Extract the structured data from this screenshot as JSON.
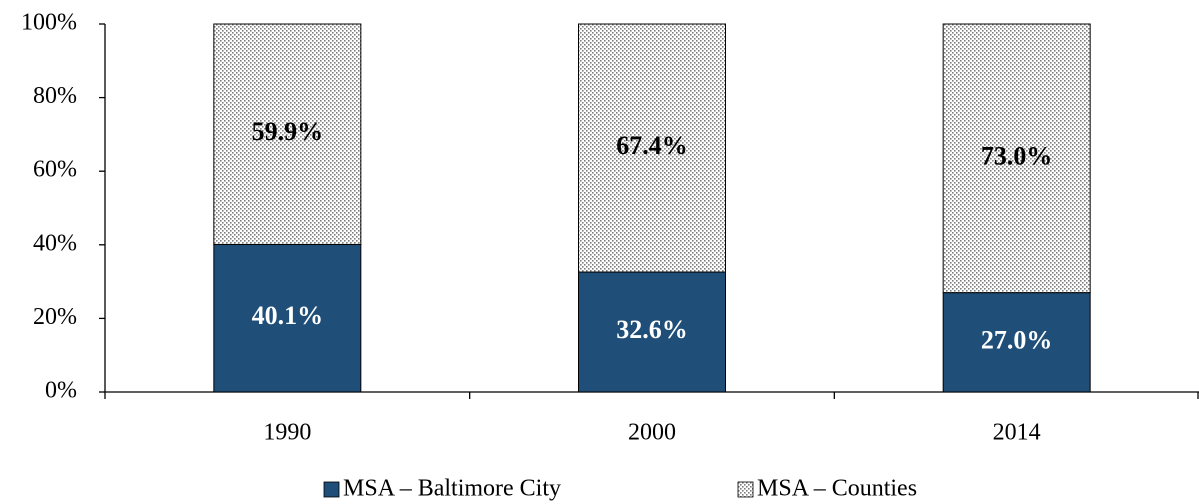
{
  "chart_data": {
    "type": "stacked_bar",
    "categories": [
      "1990",
      "2000",
      "2014"
    ],
    "series": [
      {
        "name": "MSA – Baltimore City",
        "color": "#1f4e79",
        "values": [
          40.1,
          32.6,
          27.0
        ],
        "value_labels": [
          "40.1%",
          "32.6%",
          "27.0%"
        ]
      },
      {
        "name": "MSA – Counties",
        "color": "#7f7f7f",
        "values": [
          59.9,
          67.4,
          73.0
        ],
        "value_labels": [
          "59.9%",
          "67.4%",
          "73.0%"
        ]
      }
    ],
    "ylim": [
      0,
      100
    ],
    "yticks": [
      {
        "value": 0,
        "label": "0%"
      },
      {
        "value": 20,
        "label": "20%"
      },
      {
        "value": 40,
        "label": "40%"
      },
      {
        "value": 60,
        "label": "60%"
      },
      {
        "value": 80,
        "label": "80%"
      },
      {
        "value": 100,
        "label": "100%"
      }
    ],
    "legend": "bottom"
  }
}
